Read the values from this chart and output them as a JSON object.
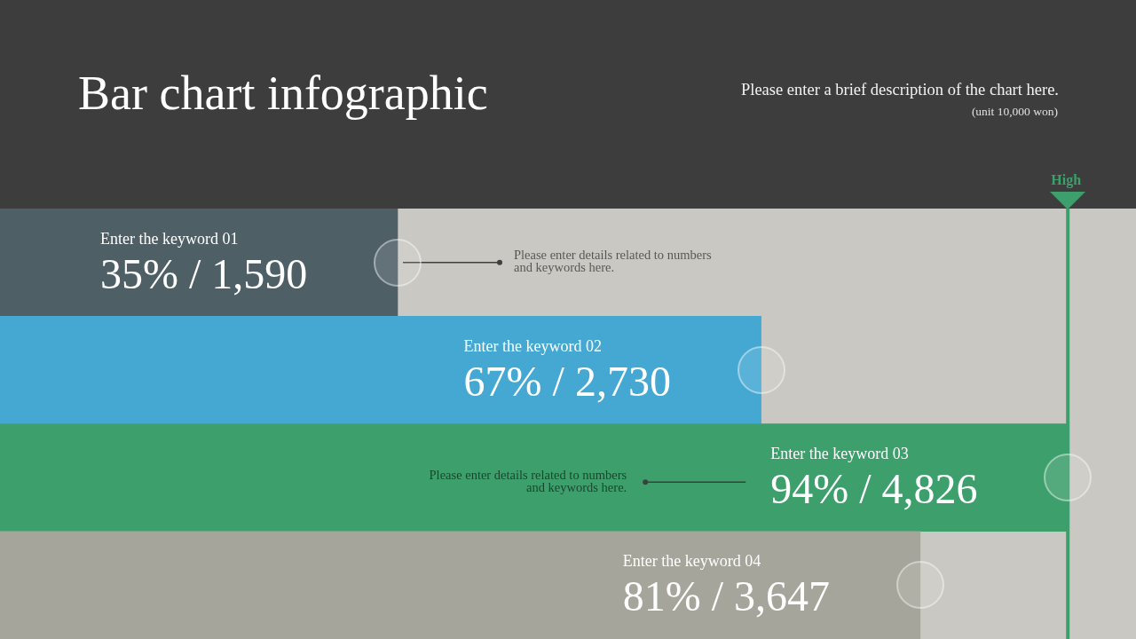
{
  "chart_data": {
    "type": "bar",
    "orientation": "horizontal",
    "title": "Bar chart infographic",
    "subtitle": "Please enter a brief description of the chart here.",
    "categories": [
      "Enter the keyword 01",
      "Enter the keyword 02",
      "Enter the keyword 03",
      "Enter the keyword 04"
    ],
    "values": [
      35,
      67,
      94,
      81
    ],
    "colors": [
      "#4e5f66",
      "#45a8d3",
      "#3d9f6b",
      "#a5a59b"
    ],
    "value_labels": [
      "35% / 1,590",
      "67% / 2,730",
      "94% / 4,826",
      "81% / 3,647"
    ],
    "xlim": [
      0,
      100
    ],
    "tick_labels": "y",
    "ref_lines": [
      {
        "axis": "x",
        "value": 94,
        "label": "High",
        "color": "#3d9f6b"
      }
    ],
    "annotations": [
      "(unit 10,000 won)",
      {
        "text": "Please enter details related to numbers and keywords here.",
        "x": 35,
        "y": "Enter the keyword 01"
      },
      "Please enter details related to numbers and keywords here."
    ]
  }
}
